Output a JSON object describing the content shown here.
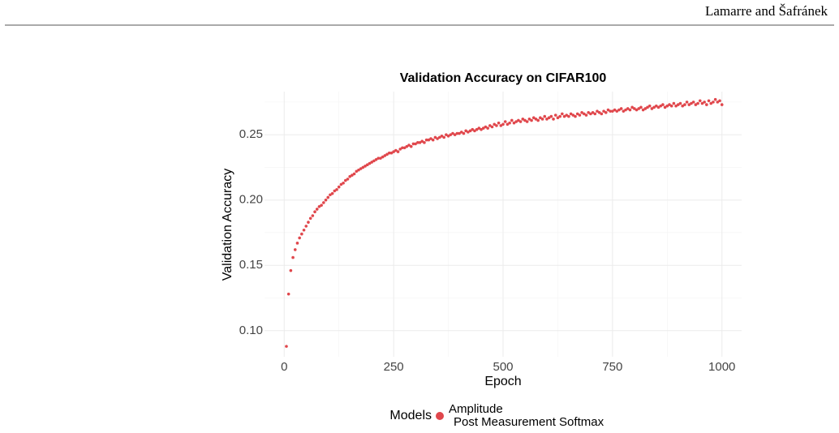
{
  "header": {
    "text": "Lamarre and Šafránek"
  },
  "chart_data": {
    "type": "scatter",
    "title": "Validation Accuracy on CIFAR100",
    "xlabel": "Epoch",
    "ylabel": "Validation Accuracy",
    "xlim": [
      -45,
      1045
    ],
    "ylim": [
      0.08,
      0.283
    ],
    "xticks": [
      0,
      250,
      500,
      750,
      1000
    ],
    "yticks": [
      {
        "value": 0.1,
        "label": "0.10"
      },
      0.15,
      {
        "value": 0.2,
        "label": "0.20"
      },
      0.25
    ],
    "minor_xticks": [
      125,
      375,
      625,
      875
    ],
    "minor_yticks": [
      0.125,
      0.175,
      0.225,
      0.275
    ],
    "grid": true,
    "legend": {
      "title": "Models",
      "position": "bottom"
    },
    "series": [
      {
        "name": "Amplitude",
        "color": "#e0474c",
        "x": [
          5,
          10,
          15,
          20,
          25,
          30,
          35,
          40,
          45,
          50,
          55,
          60,
          65,
          70,
          75,
          80,
          85,
          90,
          95,
          100,
          105,
          110,
          115,
          120,
          125,
          130,
          135,
          140,
          145,
          150,
          155,
          160,
          165,
          170,
          175,
          180,
          185,
          190,
          195,
          200,
          205,
          210,
          215,
          220,
          225,
          230,
          235,
          240,
          245,
          250,
          255,
          260,
          265,
          270,
          275,
          280,
          285,
          290,
          295,
          300,
          305,
          310,
          315,
          320,
          325,
          330,
          335,
          340,
          345,
          350,
          355,
          360,
          365,
          370,
          375,
          380,
          385,
          390,
          395,
          400,
          405,
          410,
          415,
          420,
          425,
          430,
          435,
          440,
          445,
          450,
          455,
          460,
          465,
          470,
          475,
          480,
          485,
          490,
          495,
          500,
          505,
          510,
          515,
          520,
          525,
          530,
          535,
          540,
          545,
          550,
          555,
          560,
          565,
          570,
          575,
          580,
          585,
          590,
          595,
          600,
          605,
          610,
          615,
          620,
          625,
          630,
          635,
          640,
          645,
          650,
          655,
          660,
          665,
          670,
          675,
          680,
          685,
          690,
          695,
          700,
          705,
          710,
          715,
          720,
          725,
          730,
          735,
          740,
          745,
          750,
          755,
          760,
          765,
          770,
          775,
          780,
          785,
          790,
          795,
          800,
          805,
          810,
          815,
          820,
          825,
          830,
          835,
          840,
          845,
          850,
          855,
          860,
          865,
          870,
          875,
          880,
          885,
          890,
          895,
          900,
          905,
          910,
          915,
          920,
          925,
          930,
          935,
          940,
          945,
          950,
          955,
          960,
          965,
          970,
          975,
          980,
          985,
          990,
          995,
          1000
        ],
        "values": [
          0.088,
          0.128,
          0.146,
          0.156,
          0.162,
          0.167,
          0.171,
          0.174,
          0.177,
          0.18,
          0.183,
          0.186,
          0.188,
          0.191,
          0.193,
          0.195,
          0.196,
          0.198,
          0.2,
          0.202,
          0.204,
          0.205,
          0.207,
          0.208,
          0.21,
          0.212,
          0.213,
          0.215,
          0.216,
          0.218,
          0.219,
          0.22,
          0.222,
          0.223,
          0.224,
          0.225,
          0.226,
          0.227,
          0.228,
          0.229,
          0.23,
          0.231,
          0.232,
          0.232,
          0.233,
          0.234,
          0.235,
          0.236,
          0.236,
          0.237,
          0.238,
          0.237,
          0.239,
          0.24,
          0.24,
          0.241,
          0.242,
          0.241,
          0.243,
          0.243,
          0.244,
          0.244,
          0.245,
          0.244,
          0.246,
          0.246,
          0.247,
          0.246,
          0.248,
          0.247,
          0.248,
          0.249,
          0.248,
          0.25,
          0.249,
          0.25,
          0.251,
          0.25,
          0.251,
          0.251,
          0.252,
          0.251,
          0.253,
          0.252,
          0.253,
          0.254,
          0.253,
          0.254,
          0.255,
          0.254,
          0.255,
          0.256,
          0.255,
          0.257,
          0.256,
          0.258,
          0.257,
          0.259,
          0.257,
          0.258,
          0.26,
          0.258,
          0.259,
          0.261,
          0.259,
          0.26,
          0.261,
          0.26,
          0.262,
          0.261,
          0.26,
          0.262,
          0.261,
          0.263,
          0.262,
          0.261,
          0.263,
          0.262,
          0.264,
          0.262,
          0.263,
          0.264,
          0.262,
          0.265,
          0.263,
          0.264,
          0.266,
          0.264,
          0.265,
          0.264,
          0.266,
          0.265,
          0.264,
          0.266,
          0.265,
          0.267,
          0.266,
          0.265,
          0.267,
          0.266,
          0.267,
          0.266,
          0.268,
          0.267,
          0.266,
          0.268,
          0.267,
          0.269,
          0.268,
          0.268,
          0.269,
          0.268,
          0.269,
          0.27,
          0.268,
          0.269,
          0.27,
          0.269,
          0.271,
          0.27,
          0.269,
          0.27,
          0.271,
          0.269,
          0.27,
          0.271,
          0.272,
          0.27,
          0.271,
          0.272,
          0.271,
          0.272,
          0.273,
          0.271,
          0.272,
          0.273,
          0.272,
          0.274,
          0.272,
          0.273,
          0.274,
          0.272,
          0.273,
          0.275,
          0.273,
          0.274,
          0.275,
          0.273,
          0.274,
          0.276,
          0.274,
          0.275,
          0.273,
          0.276,
          0.274,
          0.275,
          0.277,
          0.275,
          0.276,
          0.273
        ]
      },
      {
        "name": "Post Measurement Softmax",
        "x": [],
        "values": []
      }
    ]
  }
}
